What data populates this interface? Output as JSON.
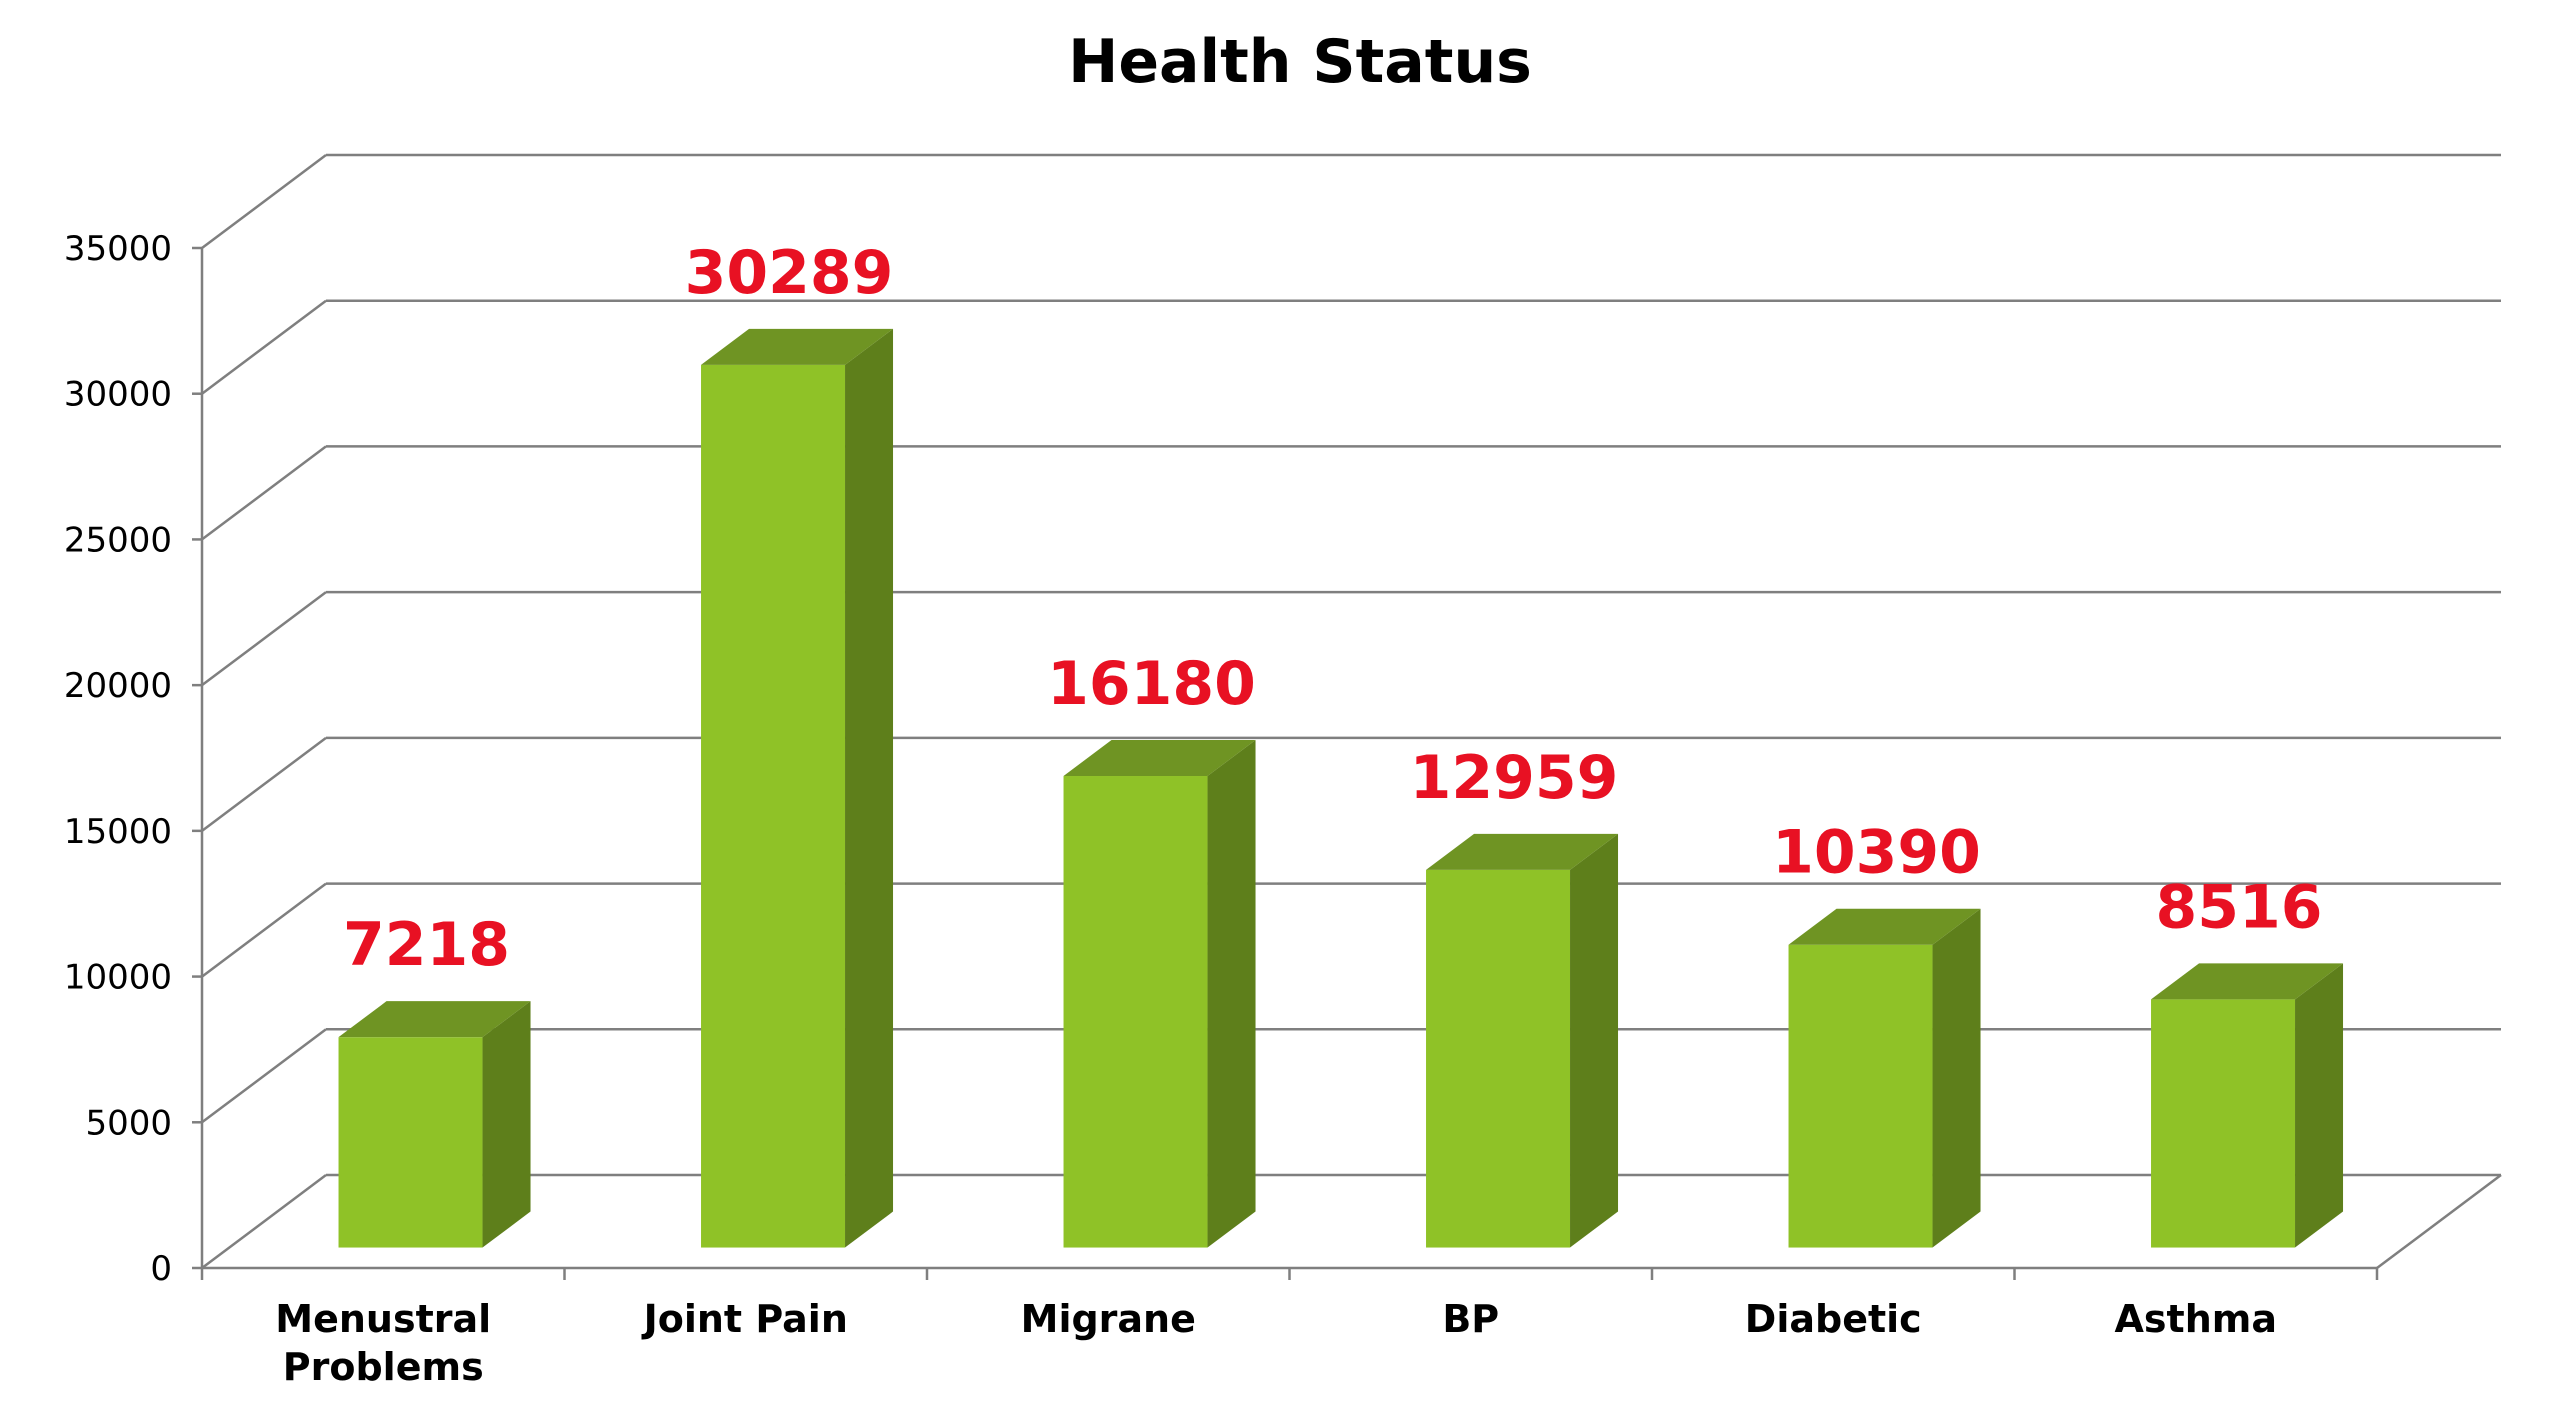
{
  "chart_data": {
    "type": "bar",
    "style": "3d-column",
    "title": "Health Status",
    "xlabel": "",
    "ylabel": "",
    "categories": [
      "Menustral Problems",
      "Joint Pain",
      "Migrane",
      "BP",
      "Diabetic",
      "Asthma"
    ],
    "values": [
      7218,
      30289,
      16180,
      12959,
      10390,
      8516
    ],
    "data_labels": [
      "7218",
      "30289",
      "16180",
      "12959",
      "10390",
      "8516"
    ],
    "y_ticks": [
      0,
      5000,
      10000,
      15000,
      20000,
      25000,
      30000,
      35000
    ],
    "ylim": [
      0,
      35000
    ],
    "grid": true,
    "legend": "none",
    "colors": {
      "bar_front": "#8fc227",
      "bar_side": "#5e7f1b",
      "bar_top": "#6f9423",
      "data_label": "#e81123",
      "grid": "#7f7f7f",
      "text": "#000000"
    }
  }
}
